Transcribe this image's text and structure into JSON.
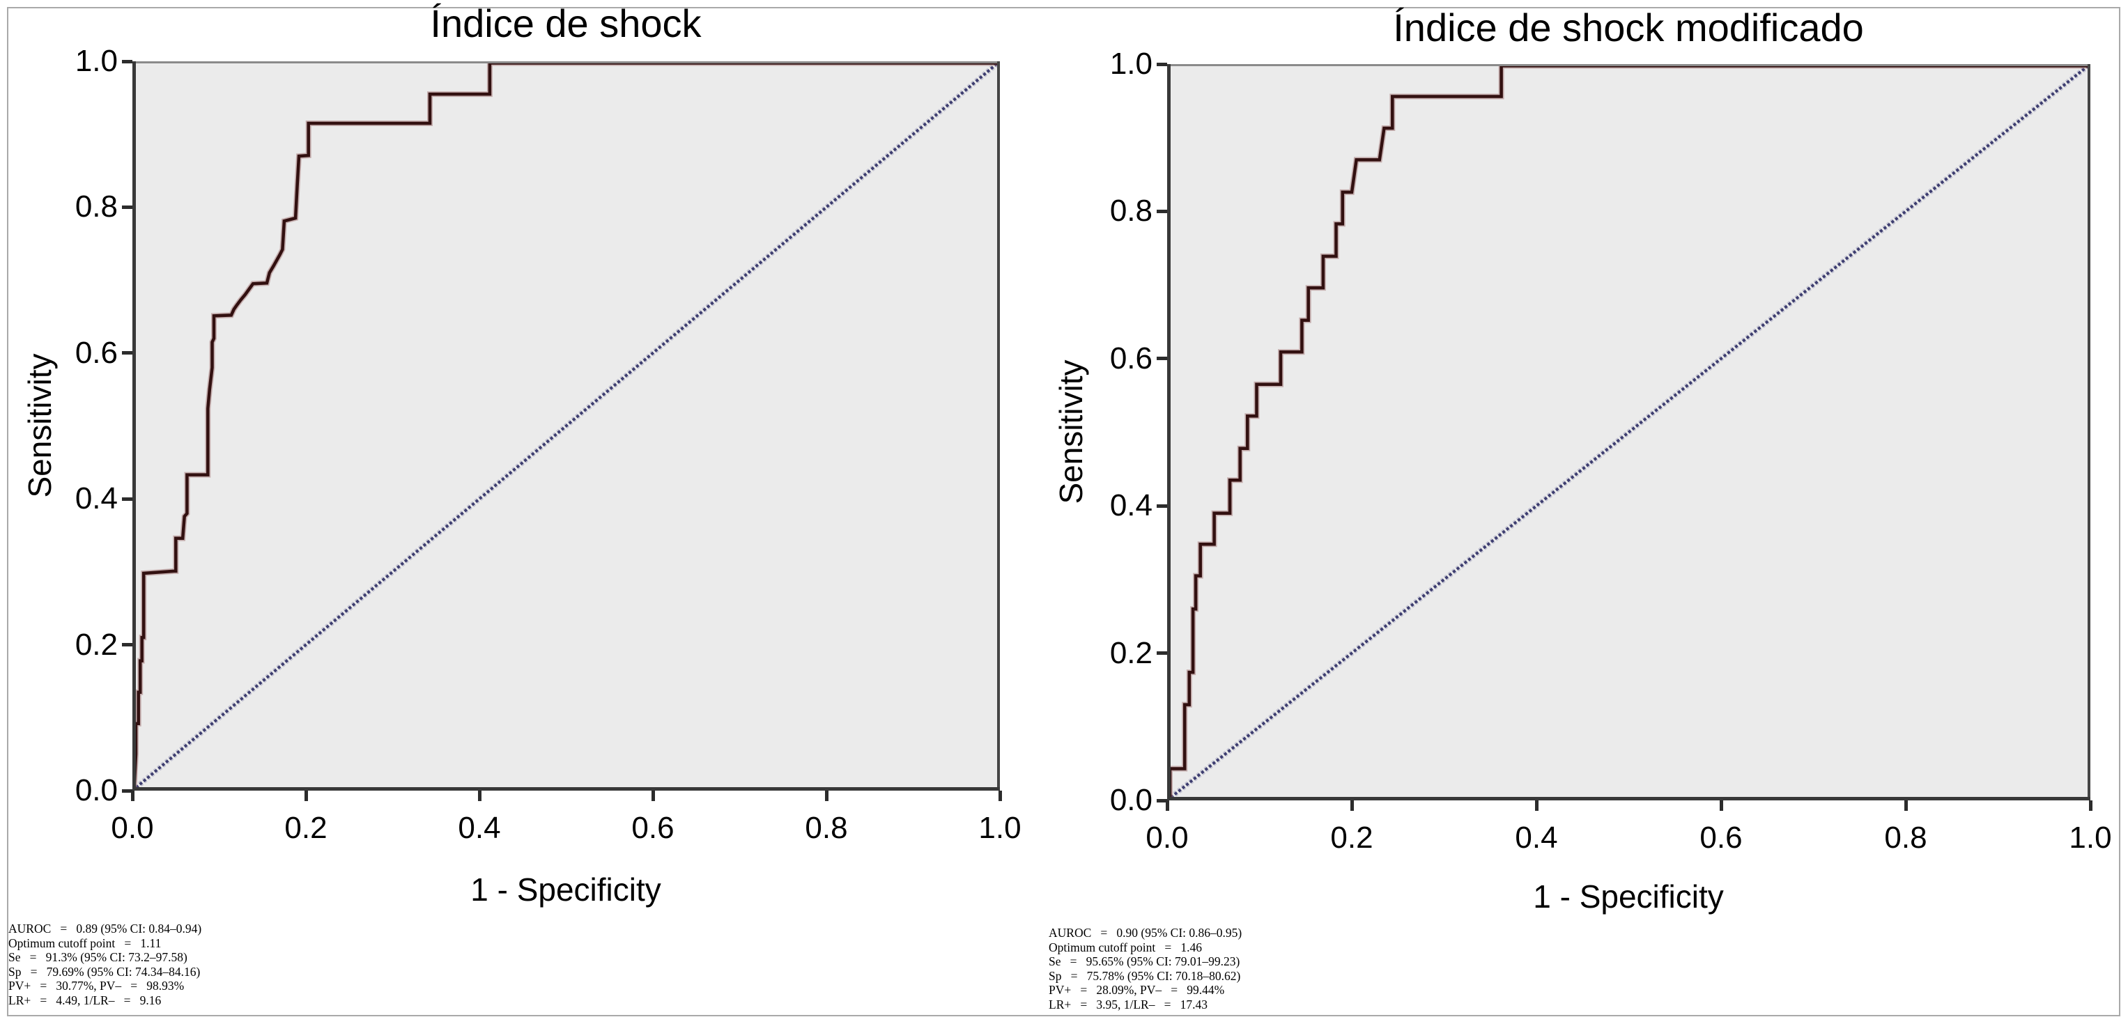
{
  "styles": {
    "figure_border": "#a9a9a9",
    "plot_background": "#ebebeb",
    "axis_frame_dark": "#383838",
    "axis_frame_light": "#8a8a8a",
    "roc_color": "#321010",
    "roc_halo": "#a07272",
    "diagonal_color": "#3d3d6f",
    "diagonal_halo": "#9797b4",
    "text_color": "#000000"
  },
  "chart_data": [
    {
      "type": "line",
      "subtype": "roc-step",
      "title": "Índice de shock",
      "xlabel": "1 - Specificity",
      "ylabel": "Sensitivity",
      "xlim": [
        0,
        1
      ],
      "ylim": [
        0,
        1
      ],
      "grid": false,
      "legend": null,
      "x_ticks": [
        "0.0",
        "0.2",
        "0.4",
        "0.6",
        "0.8",
        "1.0"
      ],
      "y_ticks": [
        "0.0",
        "0.2",
        "0.4",
        "0.6",
        "0.8",
        "1.0"
      ],
      "series": [
        {
          "name": "ROC curve",
          "color": "#321010",
          "points": [
            [
              0,
              0
            ],
            [
              0.004,
              0.05
            ],
            [
              0.004,
              0.092
            ],
            [
              0.007,
              0.092
            ],
            [
              0.007,
              0.135
            ],
            [
              0.009,
              0.135
            ],
            [
              0.009,
              0.178
            ],
            [
              0.011,
              0.178
            ],
            [
              0.011,
              0.21
            ],
            [
              0.013,
              0.21
            ],
            [
              0.013,
              0.298
            ],
            [
              0.048,
              0.301
            ],
            [
              0.05,
              0.301
            ],
            [
              0.05,
              0.346
            ],
            [
              0.058,
              0.346
            ],
            [
              0.06,
              0.376
            ],
            [
              0.063,
              0.38
            ],
            [
              0.063,
              0.433
            ],
            [
              0.087,
              0.433
            ],
            [
              0.087,
              0.524
            ],
            [
              0.089,
              0.55
            ],
            [
              0.092,
              0.58
            ],
            [
              0.092,
              0.615
            ],
            [
              0.094,
              0.62
            ],
            [
              0.094,
              0.651
            ],
            [
              0.114,
              0.652
            ],
            [
              0.117,
              0.66
            ],
            [
              0.12,
              0.665
            ],
            [
              0.125,
              0.673
            ],
            [
              0.13,
              0.68
            ],
            [
              0.139,
              0.695
            ],
            [
              0.155,
              0.696
            ],
            [
              0.158,
              0.71
            ],
            [
              0.163,
              0.72
            ],
            [
              0.17,
              0.735
            ],
            [
              0.173,
              0.742
            ],
            [
              0.175,
              0.781
            ],
            [
              0.188,
              0.785
            ],
            [
              0.19,
              0.83
            ],
            [
              0.192,
              0.87
            ],
            [
              0.203,
              0.871
            ],
            [
              0.203,
              0.915
            ],
            [
              0.343,
              0.915
            ],
            [
              0.343,
              0.955
            ],
            [
              0.412,
              0.955
            ],
            [
              0.412,
              1
            ],
            [
              1,
              1
            ]
          ]
        },
        {
          "name": "Reference diagonal",
          "color": "#3d3d6f",
          "style": "dotted",
          "points": [
            [
              0,
              0
            ],
            [
              1,
              1
            ]
          ]
        }
      ],
      "stats": {
        "auroc": "0.89",
        "auroc_ci": "0.84–0.94",
        "optimum_cutoff_point": "1.11",
        "se": "91.3%",
        "se_ci": "73.2–97.58",
        "sp": "79.69%",
        "sp_ci": "74.34–84.16",
        "pv_plus": "30.77%",
        "pv_minus": "98.93%",
        "lr_plus": "4.49",
        "inv_lr_minus": "9.16"
      },
      "stats_lines": [
        "AUROC   =   0.89 (95% CI: 0.84–0.94)",
        "Optimum cutoff point   =   1.11",
        "Se   =   91.3% (95% CI: 73.2–97.58)",
        "Sp   =   79.69% (95% CI: 74.34–84.16)",
        "PV+   =   30.77%, PV–   =   98.93%",
        "LR+   =   4.49, 1/LR–   =   9.16"
      ]
    },
    {
      "type": "line",
      "subtype": "roc-step",
      "title": "Índice de shock modificado",
      "xlabel": "1 - Specificity",
      "ylabel": "Sensitivity",
      "xlim": [
        0,
        1
      ],
      "ylim": [
        0,
        1
      ],
      "grid": false,
      "legend": null,
      "x_ticks": [
        "0.0",
        "0.2",
        "0.4",
        "0.6",
        "0.8",
        "1.0"
      ],
      "y_ticks": [
        "0.0",
        "0.2",
        "0.4",
        "0.6",
        "0.8",
        "1.0"
      ],
      "series": [
        {
          "name": "ROC curve",
          "color": "#321010",
          "points": [
            [
              0,
              0
            ],
            [
              0.003,
              0
            ],
            [
              0.003,
              0.043
            ],
            [
              0.019,
              0.043
            ],
            [
              0.019,
              0.13
            ],
            [
              0.024,
              0.13
            ],
            [
              0.024,
              0.174
            ],
            [
              0.028,
              0.174
            ],
            [
              0.028,
              0.26
            ],
            [
              0.031,
              0.26
            ],
            [
              0.031,
              0.305
            ],
            [
              0.036,
              0.305
            ],
            [
              0.036,
              0.348
            ],
            [
              0.051,
              0.348
            ],
            [
              0.051,
              0.39
            ],
            [
              0.068,
              0.39
            ],
            [
              0.068,
              0.435
            ],
            [
              0.079,
              0.435
            ],
            [
              0.079,
              0.478
            ],
            [
              0.087,
              0.478
            ],
            [
              0.087,
              0.522
            ],
            [
              0.097,
              0.522
            ],
            [
              0.097,
              0.565
            ],
            [
              0.123,
              0.565
            ],
            [
              0.123,
              0.609
            ],
            [
              0.146,
              0.609
            ],
            [
              0.146,
              0.652
            ],
            [
              0.153,
              0.652
            ],
            [
              0.153,
              0.696
            ],
            [
              0.169,
              0.696
            ],
            [
              0.169,
              0.739
            ],
            [
              0.183,
              0.739
            ],
            [
              0.183,
              0.783
            ],
            [
              0.19,
              0.783
            ],
            [
              0.19,
              0.826
            ],
            [
              0.2,
              0.826
            ],
            [
              0.205,
              0.87
            ],
            [
              0.23,
              0.87
            ],
            [
              0.235,
              0.913
            ],
            [
              0.244,
              0.913
            ],
            [
              0.244,
              0.956
            ],
            [
              0.362,
              0.956
            ],
            [
              0.362,
              1
            ],
            [
              1,
              1
            ]
          ]
        },
        {
          "name": "Reference diagonal",
          "color": "#3d3d6f",
          "style": "dotted",
          "points": [
            [
              0,
              0
            ],
            [
              1,
              1
            ]
          ]
        }
      ],
      "stats": {
        "auroc": "0.90",
        "auroc_ci": "0.86–0.95",
        "optimum_cutoff_point": "1.46",
        "se": "95.65%",
        "se_ci": "79.01–99.23",
        "sp": "75.78%",
        "sp_ci": "70.18–80.62",
        "pv_plus": "28.09%",
        "pv_minus": "99.44%",
        "lr_plus": "3.95",
        "inv_lr_minus": "17.43"
      },
      "stats_lines": [
        "AUROC   =   0.90 (95% CI: 0.86–0.95)",
        "Optimum cutoff point   =   1.46",
        "Se   =   95.65% (95% CI: 79.01–99.23)",
        "Sp   =   75.78% (95% CI: 70.18–80.62)",
        "PV+   =   28.09%, PV–   =   99.44%",
        "LR+   =   3.95, 1/LR–   =   17.43"
      ]
    }
  ]
}
